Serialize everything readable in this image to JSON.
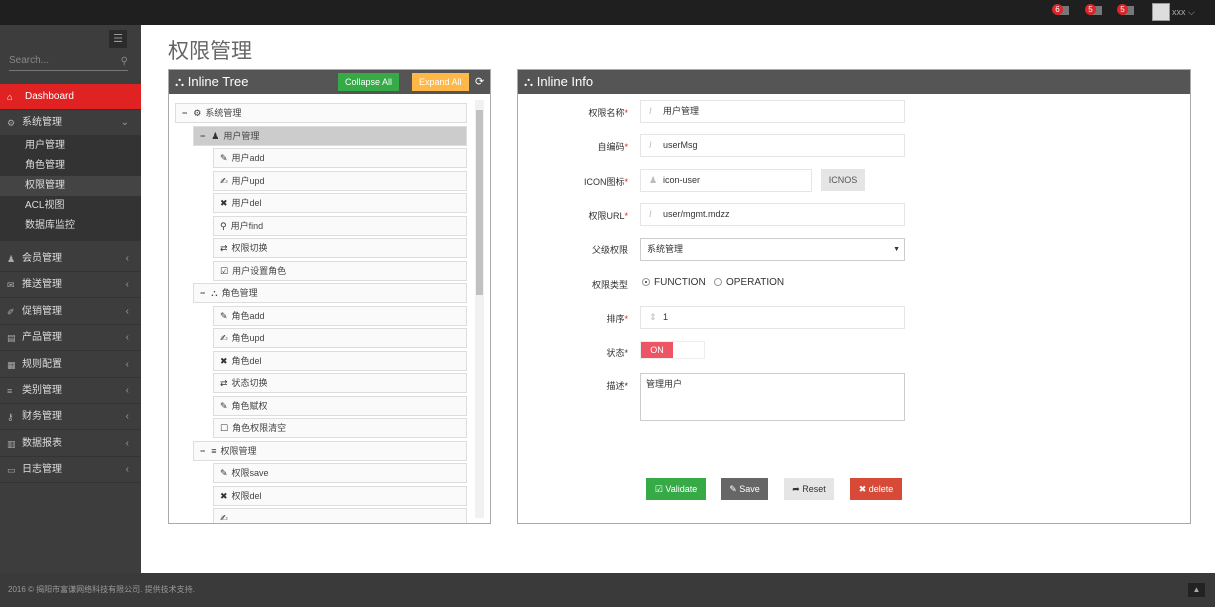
{
  "header": {
    "notifications": [
      {
        "count": "6",
        "icon": "warning-icon"
      },
      {
        "count": "5",
        "icon": "envelope-icon"
      },
      {
        "count": "5",
        "icon": "tasks-icon"
      }
    ],
    "username": "xxx"
  },
  "sidebar": {
    "search_placeholder": "Search...",
    "dashboard": "Dashboard",
    "system": "系统管理",
    "sub_items": [
      "用户管理",
      "角色管理",
      "权限管理",
      "ACL视图",
      "数据库监控"
    ],
    "items": [
      "会员管理",
      "推送管理",
      "促销管理",
      "产品管理",
      "规则配置",
      "类别管理",
      "财务管理",
      "数据报表",
      "日志管理"
    ]
  },
  "page": {
    "title": "权限管理"
  },
  "tree": {
    "title": "Inline Tree",
    "collapse_all": "Collapse All",
    "expand_all": "Expand All",
    "nodes": [
      {
        "label": "系统管理",
        "icon": "cogs-icon",
        "level": 0,
        "toggle": "−"
      },
      {
        "label": "用户管理",
        "icon": "user-icon",
        "level": 1,
        "toggle": "−",
        "selected": true
      },
      {
        "label": "用户add",
        "icon": "pencil-icon",
        "level": 2
      },
      {
        "label": "用户upd",
        "icon": "edit-icon",
        "level": 2
      },
      {
        "label": "用户del",
        "icon": "times-icon",
        "level": 2
      },
      {
        "label": "用户find",
        "icon": "search-icon",
        "level": 2
      },
      {
        "label": "权限切换",
        "icon": "retweet-icon",
        "level": 2
      },
      {
        "label": "用户设置角色",
        "icon": "check-square-icon",
        "level": 2
      },
      {
        "label": "角色管理",
        "icon": "sitemap-icon",
        "level": 1,
        "toggle": "−"
      },
      {
        "label": "角色add",
        "icon": "pencil-icon",
        "level": 2
      },
      {
        "label": "角色upd",
        "icon": "edit-icon",
        "level": 2
      },
      {
        "label": "角色del",
        "icon": "times-icon",
        "level": 2
      },
      {
        "label": "状态切换",
        "icon": "retweet-icon",
        "level": 2
      },
      {
        "label": "角色赋权",
        "icon": "pencil-icon",
        "level": 2
      },
      {
        "label": "角色权限清空",
        "icon": "square-icon",
        "level": 2
      },
      {
        "label": "权限管理",
        "icon": "list-icon",
        "level": 1,
        "toggle": "−"
      },
      {
        "label": "权限save",
        "icon": "pencil-icon",
        "level": 2
      },
      {
        "label": "权限del",
        "icon": "times-icon",
        "level": 2
      },
      {
        "label": "",
        "icon": "edit-icon",
        "level": 2
      }
    ]
  },
  "info": {
    "title": "Inline Info",
    "fields": {
      "name_label": "权限名称",
      "name": "用户管理",
      "code_label": "自编码",
      "code": "userMsg",
      "icon_label": "ICON图标",
      "icon": "icon-user",
      "icons_btn": "ICNOS",
      "url_label": "权限URL",
      "url": "user/mgmt.mdzz",
      "parent_label": "父级权限",
      "parent": "系统管理",
      "type_label": "权限类型",
      "type_options": [
        "FUNCTION",
        "OPERATION"
      ],
      "type_selected": "FUNCTION",
      "order_label": "排序",
      "order": "1",
      "status_label": "状态",
      "status": "ON",
      "desc_label": "描述",
      "desc": "管理用户"
    },
    "buttons": {
      "validate": "Validate",
      "save": "Save",
      "reset": "Reset",
      "delete": "delete"
    }
  },
  "colors": {
    "accent": "#e02222",
    "green": "#35aa47",
    "orange": "#ffb848",
    "delete": "#d84a38"
  },
  "footer": {
    "text": "2016 © 揭阳市富谦网络科技有限公司. 提供技术支持."
  }
}
